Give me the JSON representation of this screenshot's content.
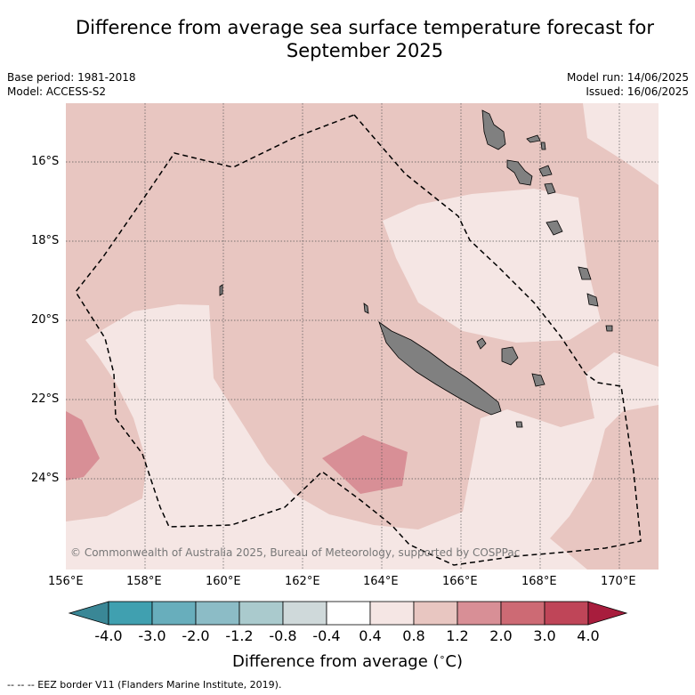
{
  "title_line1": "Difference from average sea surface temperature forecast for",
  "title_line2": "September 2025",
  "meta": {
    "base_period": "Base period: 1981-2018",
    "model": "Model: ACCESS-S2",
    "model_run": "Model run: 14/06/2025",
    "issued": "Issued: 16/06/2025"
  },
  "map": {
    "lon_labels": [
      "156°E",
      "158°E",
      "160°E",
      "162°E",
      "164°E",
      "166°E",
      "168°E",
      "170°E"
    ],
    "lat_labels": [
      "16°S",
      "18°S",
      "20°S",
      "22°S",
      "24°S"
    ],
    "copyright": "© Commonwealth of Australia 2025, Bureau of Meteorology, supported by COSPPac",
    "land_color": "#808080"
  },
  "colorbar": {
    "ticks": [
      "-4.0",
      "-3.0",
      "-2.0",
      "-1.2",
      "-0.8",
      "-0.4",
      "0.4",
      "0.8",
      "1.2",
      "2.0",
      "3.0",
      "4.0"
    ],
    "colors": [
      "#40a0b0",
      "#68aebc",
      "#8cbcc6",
      "#aacacd",
      "#cfd9da",
      "#ffffff",
      "#f5e6e4",
      "#e8c6c1",
      "#d88f96",
      "#cd6a74",
      "#bf4558"
    ],
    "under_color": "#3a8796",
    "over_color": "#a81d3d",
    "label": "Difference from average ($^\\circ$C)"
  },
  "footnote": "--  --  -- EEZ border V11 (Flanders Marine Institute, 2019)."
}
